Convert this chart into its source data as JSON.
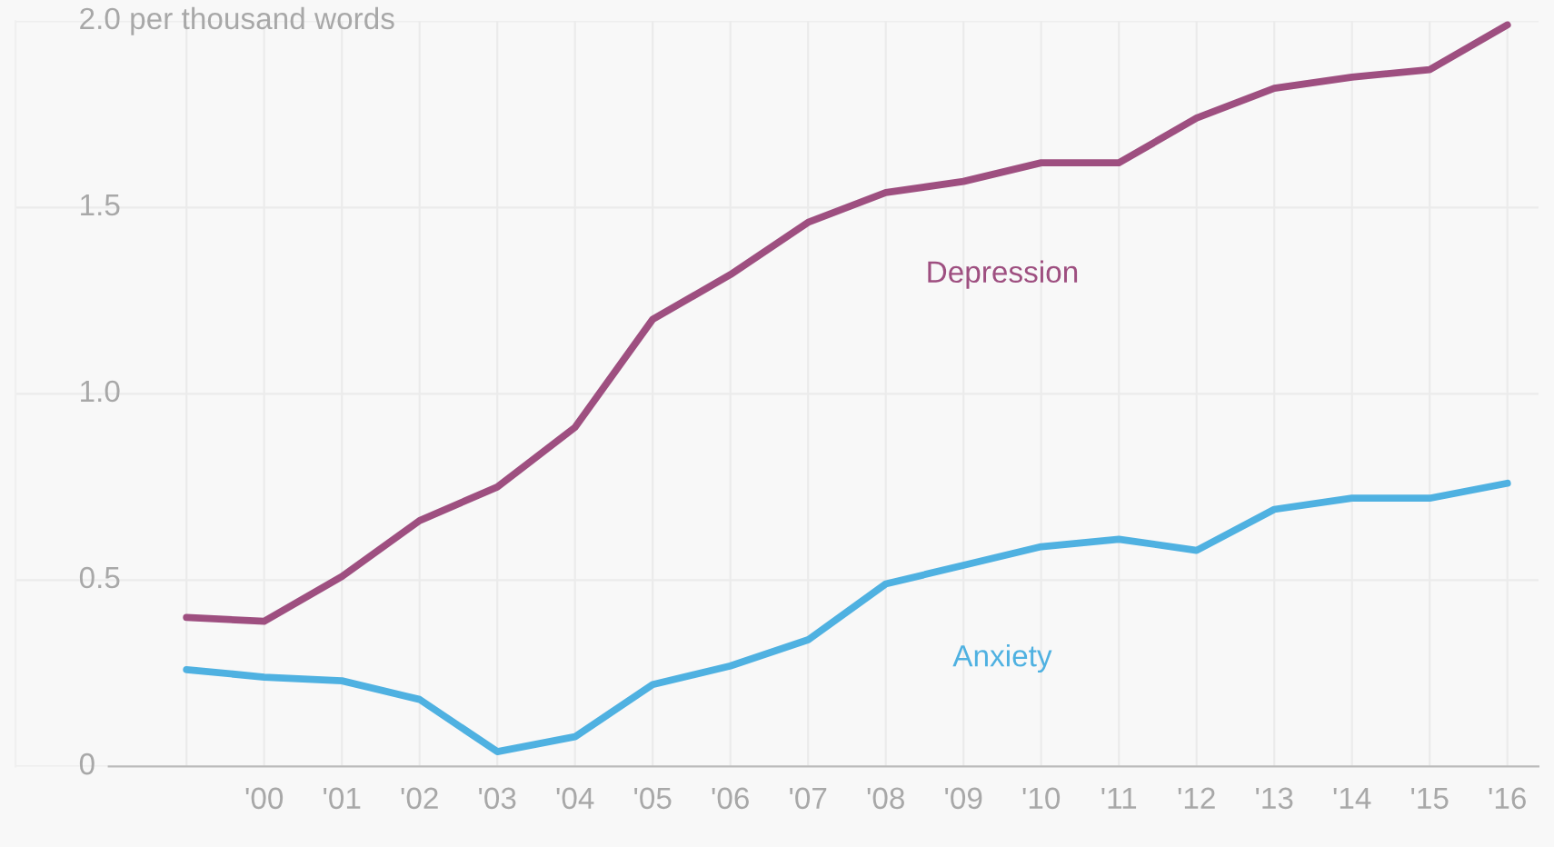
{
  "chart_data": {
    "type": "line",
    "categories": [
      null,
      "'00",
      "'01",
      "'02",
      "'03",
      "'04",
      "'05",
      "'06",
      "'07",
      "'08",
      "'09",
      "'10",
      "'11",
      "'12",
      "'13",
      "'14",
      "'15",
      "'16"
    ],
    "series": [
      {
        "name": "Depression",
        "color": "#9e4f80",
        "values": [
          0.4,
          0.39,
          0.51,
          0.66,
          0.75,
          0.91,
          1.2,
          1.32,
          1.46,
          1.54,
          1.57,
          1.62,
          1.62,
          1.74,
          1.82,
          1.85,
          1.87,
          1.99
        ]
      },
      {
        "name": "Anxiety",
        "color": "#4fb1e1",
        "values": [
          0.26,
          0.24,
          0.23,
          0.18,
          0.04,
          0.08,
          0.22,
          0.27,
          0.34,
          0.49,
          0.54,
          0.59,
          0.61,
          0.58,
          0.69,
          0.72,
          0.72,
          0.76
        ]
      }
    ],
    "ylim": [
      0,
      2.0
    ],
    "yticks": [
      0,
      0.5,
      {
        "value": 1.0,
        "label": "1.0"
      },
      1.5,
      {
        "value": 2.0,
        "label": "2.0 per thousand words"
      }
    ],
    "grid": true,
    "legend": false,
    "marker": "none",
    "line_style": "solid"
  }
}
